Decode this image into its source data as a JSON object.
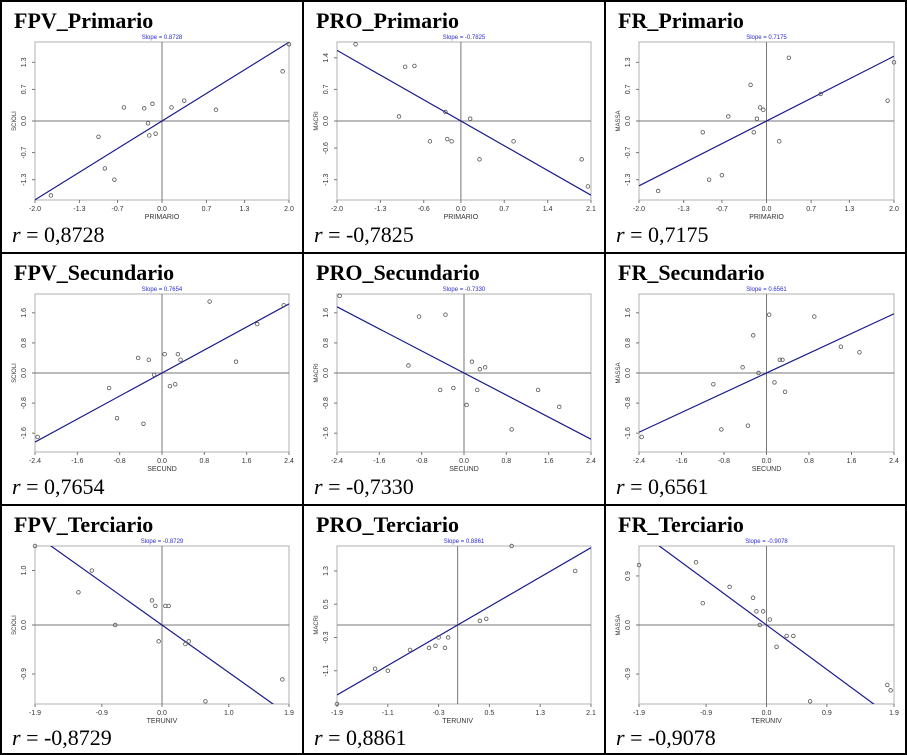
{
  "r_label": "r",
  "colors": {
    "line": "#1a1a8c",
    "point": "#555555",
    "axis": "#777777",
    "slope_text": "#2a2ad0",
    "frame": "#b0b0b0"
  },
  "chart_data": [
    {
      "type": "scatter",
      "title": "FPV_Primario",
      "slope_label": "Slope = 0.8728",
      "xlabel": "PRIMARIO",
      "ylabel": "SCIOLI",
      "xticks": [
        "-2.0",
        "-1.3",
        "-0.7",
        "0.0",
        "0.7",
        "1.3",
        "2.0"
      ],
      "xtick_values": [
        -2.0,
        -1.3,
        -0.7,
        0.0,
        0.7,
        1.3,
        2.0
      ],
      "yticks": [
        "1.3",
        "0.7",
        "0.0",
        "-0.7",
        "-1.3"
      ],
      "ytick_values": [
        1.3,
        0.7,
        0.0,
        -0.7,
        -1.3
      ],
      "xlim": [
        -2.0,
        2.0
      ],
      "ylim": [
        -1.75,
        1.75
      ],
      "slope": 0.8728,
      "r_value": "0,8728",
      "points": [
        [
          -1.75,
          -1.65
        ],
        [
          -1.0,
          -0.35
        ],
        [
          -0.9,
          -1.05
        ],
        [
          -0.75,
          -1.3
        ],
        [
          -0.6,
          0.3
        ],
        [
          -0.28,
          0.28
        ],
        [
          -0.22,
          -0.05
        ],
        [
          -0.2,
          -0.32
        ],
        [
          -0.15,
          0.38
        ],
        [
          -0.1,
          -0.28
        ],
        [
          0.15,
          0.3
        ],
        [
          0.35,
          0.45
        ],
        [
          0.85,
          0.25
        ],
        [
          1.9,
          1.1
        ],
        [
          2.0,
          1.7
        ]
      ]
    },
    {
      "type": "scatter",
      "title": "PRO_Primario",
      "slope_label": "Slope = -0.7825",
      "xlabel": "PRIMARIO",
      "ylabel": "MACRI",
      "xticks": [
        "-2.0",
        "-1.3",
        "-0.6",
        "0.0",
        "0.7",
        "1.4",
        "2.1"
      ],
      "xtick_values": [
        -2.0,
        -1.3,
        -0.6,
        0.0,
        0.7,
        1.4,
        2.1
      ],
      "yticks": [
        "1.4",
        "0.7",
        "0.0",
        "-0.6",
        "-1.3"
      ],
      "ytick_values": [
        1.4,
        0.7,
        0.0,
        -0.6,
        -1.3
      ],
      "xlim": [
        -2.0,
        2.1
      ],
      "ylim": [
        -1.75,
        1.75
      ],
      "slope": -0.7825,
      "r_value": "-0,7825",
      "points": [
        [
          -1.7,
          1.7
        ],
        [
          -1.0,
          0.1
        ],
        [
          -0.9,
          1.2
        ],
        [
          -0.75,
          1.22
        ],
        [
          -0.5,
          -0.45
        ],
        [
          -0.25,
          0.2
        ],
        [
          -0.22,
          -0.4
        ],
        [
          -0.15,
          -0.45
        ],
        [
          0.15,
          0.05
        ],
        [
          0.3,
          -0.85
        ],
        [
          0.85,
          -0.45
        ],
        [
          1.95,
          -0.85
        ],
        [
          2.05,
          -1.45
        ]
      ]
    },
    {
      "type": "scatter",
      "title": "FR_Primario",
      "slope_label": "Slope = 0.7175",
      "xlabel": "PRIMARIO",
      "ylabel": "MASSA",
      "xticks": [
        "-2.0",
        "-1.3",
        "-0.7",
        "0.0",
        "0.7",
        "1.3",
        "2.0"
      ],
      "xtick_values": [
        -2.0,
        -1.3,
        -0.7,
        0.0,
        0.7,
        1.3,
        2.0
      ],
      "yticks": [
        "1.3",
        "0.7",
        "0.0",
        "-0.7",
        "-1.3"
      ],
      "ytick_values": [
        1.3,
        0.7,
        0.0,
        -0.7,
        -1.3
      ],
      "xlim": [
        -2.0,
        2.0
      ],
      "ylim": [
        -1.75,
        1.75
      ],
      "slope": 0.7175,
      "r_value": "0,7175",
      "points": [
        [
          -1.7,
          -1.55
        ],
        [
          -1.0,
          -0.25
        ],
        [
          -0.9,
          -1.3
        ],
        [
          -0.7,
          -1.2
        ],
        [
          -0.6,
          0.1
        ],
        [
          -0.25,
          0.8
        ],
        [
          -0.2,
          -0.25
        ],
        [
          -0.15,
          0.05
        ],
        [
          -0.1,
          0.3
        ],
        [
          -0.05,
          0.25
        ],
        [
          0.2,
          -0.45
        ],
        [
          0.35,
          1.4
        ],
        [
          0.85,
          0.6
        ],
        [
          1.9,
          0.45
        ],
        [
          2.0,
          1.3
        ]
      ]
    },
    {
      "type": "scatter",
      "title": "FPV_Secundario",
      "slope_label": "Slope = 0.7654",
      "xlabel": "SECUND",
      "ylabel": "SCIOLI",
      "xticks": [
        "-2.4",
        "-1.6",
        "-0.8",
        "0.0",
        "0.8",
        "1.6",
        "2.4"
      ],
      "xtick_values": [
        -2.4,
        -1.6,
        -0.8,
        0.0,
        0.8,
        1.6,
        2.4
      ],
      "yticks": [
        "1.6",
        "0.8",
        "0.0",
        "-0.8",
        "-1.6"
      ],
      "ytick_values": [
        1.6,
        0.8,
        0.0,
        -0.8,
        -1.6
      ],
      "xlim": [
        -2.4,
        2.4
      ],
      "ylim": [
        -2.1,
        2.1
      ],
      "slope": 0.7654,
      "r_value": "0,7654",
      "points": [
        [
          -2.35,
          -1.7
        ],
        [
          -1.0,
          -0.4
        ],
        [
          -0.85,
          -1.2
        ],
        [
          -0.45,
          0.4
        ],
        [
          -0.35,
          -1.35
        ],
        [
          -0.25,
          0.35
        ],
        [
          -0.15,
          -0.05
        ],
        [
          0.05,
          0.5
        ],
        [
          0.15,
          -0.35
        ],
        [
          0.25,
          -0.3
        ],
        [
          0.3,
          0.5
        ],
        [
          0.35,
          0.35
        ],
        [
          0.9,
          1.9
        ],
        [
          1.4,
          0.3
        ],
        [
          1.8,
          1.3
        ],
        [
          2.3,
          1.8
        ]
      ]
    },
    {
      "type": "scatter",
      "title": "PRO_Secundario",
      "slope_label": "Slope = -0.7330",
      "xlabel": "SECUND",
      "ylabel": "MACRI",
      "xticks": [
        "-2.4",
        "-1.6",
        "-0.8",
        "0.0",
        "0.8",
        "1.6",
        "2.4"
      ],
      "xtick_values": [
        -2.4,
        -1.6,
        -0.8,
        0.0,
        0.8,
        1.6,
        2.4
      ],
      "yticks": [
        "1.6",
        "0.8",
        "0.0",
        "-0.8",
        "-1.6"
      ],
      "ytick_values": [
        1.6,
        0.8,
        0.0,
        -0.8,
        -1.6
      ],
      "xlim": [
        -2.4,
        2.4
      ],
      "ylim": [
        -2.1,
        2.1
      ],
      "slope": -0.733,
      "r_value": "-0,7330",
      "points": [
        [
          -2.35,
          2.05
        ],
        [
          -1.05,
          0.2
        ],
        [
          -0.85,
          1.5
        ],
        [
          -0.45,
          -0.45
        ],
        [
          -0.35,
          1.55
        ],
        [
          -0.2,
          -0.4
        ],
        [
          0.05,
          -0.85
        ],
        [
          0.15,
          0.3
        ],
        [
          0.25,
          -0.45
        ],
        [
          0.3,
          0.1
        ],
        [
          0.4,
          0.15
        ],
        [
          0.9,
          -1.5
        ],
        [
          1.4,
          -0.45
        ],
        [
          1.8,
          -0.9
        ]
      ]
    },
    {
      "type": "scatter",
      "title": "FR_Secundario",
      "slope_label": "Slope = 0.6561",
      "xlabel": "SECUND",
      "ylabel": "MASSA",
      "xticks": [
        "-2.4",
        "-1.6",
        "-0.8",
        "0.0",
        "0.8",
        "1.6",
        "2.4"
      ],
      "xtick_values": [
        -2.4,
        -1.6,
        -0.8,
        0.0,
        0.8,
        1.6,
        2.4
      ],
      "yticks": [
        "1.6",
        "0.8",
        "0.0",
        "-0.8",
        "-1.6"
      ],
      "ytick_values": [
        1.6,
        0.8,
        0.0,
        -0.8,
        -1.6
      ],
      "xlim": [
        -2.4,
        2.4
      ],
      "ylim": [
        -2.1,
        2.1
      ],
      "slope": 0.6561,
      "r_value": "0,6561",
      "points": [
        [
          -2.35,
          -1.7
        ],
        [
          -1.0,
          -0.3
        ],
        [
          -0.85,
          -1.5
        ],
        [
          -0.45,
          0.15
        ],
        [
          -0.35,
          -1.4
        ],
        [
          -0.25,
          1.0
        ],
        [
          -0.15,
          0.0
        ],
        [
          0.05,
          1.55
        ],
        [
          0.15,
          -0.25
        ],
        [
          0.25,
          0.35
        ],
        [
          0.3,
          0.35
        ],
        [
          0.35,
          -0.5
        ],
        [
          0.9,
          1.5
        ],
        [
          1.4,
          0.7
        ],
        [
          1.75,
          0.55
        ]
      ]
    },
    {
      "type": "scatter",
      "title": "FPV_Terciario",
      "slope_label": "Slope = -0.8729",
      "xlabel": "TERUNIV",
      "ylabel": "SCIOLI",
      "xticks": [
        "-1.9",
        "-0.9",
        "0.0",
        "1.0",
        "1.9"
      ],
      "xtick_values": [
        -1.9,
        -0.9,
        0.0,
        1.0,
        1.9
      ],
      "yticks": [
        "1.0",
        "0.0",
        "-0.9"
      ],
      "ytick_values": [
        1.0,
        0.0,
        -0.9
      ],
      "xlim": [
        -1.9,
        1.9
      ],
      "ylim": [
        -1.45,
        1.45
      ],
      "slope": -0.8729,
      "r_value": "-0,8729",
      "points": [
        [
          -1.9,
          1.45
        ],
        [
          -1.25,
          0.6
        ],
        [
          -1.05,
          1.0
        ],
        [
          -0.7,
          0.0
        ],
        [
          -0.15,
          0.45
        ],
        [
          -0.1,
          0.35
        ],
        [
          -0.05,
          -0.3
        ],
        [
          0.05,
          0.35
        ],
        [
          0.1,
          0.35
        ],
        [
          0.35,
          -0.35
        ],
        [
          0.4,
          -0.3
        ],
        [
          0.65,
          -1.4
        ],
        [
          1.8,
          -1.0
        ]
      ]
    },
    {
      "type": "scatter",
      "title": "PRO_Terciario",
      "slope_label": "Slope = 0.8861",
      "xlabel": "TERUNIV",
      "ylabel": "MACRI",
      "xticks": [
        "-1.9",
        "-1.1",
        "-0.3",
        "0.5",
        "1.3",
        "2.1"
      ],
      "xtick_values": [
        -1.9,
        -1.1,
        -0.3,
        0.5,
        1.3,
        2.1
      ],
      "yticks": [
        "1.3",
        "0.5",
        "-0.3",
        "-1.1"
      ],
      "ytick_values": [
        1.3,
        0.5,
        -0.3,
        -1.1
      ],
      "xlim": [
        -1.9,
        2.1
      ],
      "ylim": [
        -1.9,
        1.9
      ],
      "slope": 0.8861,
      "r_value": "0,8861",
      "points": [
        [
          -1.9,
          -1.9
        ],
        [
          -1.3,
          -1.05
        ],
        [
          -1.1,
          -1.1
        ],
        [
          -0.75,
          -0.6
        ],
        [
          -0.45,
          -0.55
        ],
        [
          -0.35,
          -0.5
        ],
        [
          -0.3,
          -0.3
        ],
        [
          -0.2,
          -0.55
        ],
        [
          -0.15,
          -0.3
        ],
        [
          0.35,
          0.1
        ],
        [
          0.45,
          0.15
        ],
        [
          0.85,
          1.9
        ],
        [
          1.85,
          1.3
        ]
      ]
    },
    {
      "type": "scatter",
      "title": "FR_Terciario",
      "slope_label": "Slope = -0.9078",
      "xlabel": "TERUNIV",
      "ylabel": "MASSA",
      "xticks": [
        "-1.9",
        "-0.9",
        "0.0",
        "0.9",
        "1.9"
      ],
      "xtick_values": [
        -1.9,
        -0.9,
        0.0,
        0.9,
        1.9
      ],
      "yticks": [
        "0.9",
        "0.0",
        "-0.9"
      ],
      "ytick_values": [
        0.9,
        0.0,
        -0.9
      ],
      "xlim": [
        -1.9,
        1.9
      ],
      "ylim": [
        -1.45,
        1.45
      ],
      "slope": -0.9078,
      "r_value": "-0,9078",
      "points": [
        [
          -1.9,
          1.1
        ],
        [
          -1.05,
          1.15
        ],
        [
          -0.95,
          0.4
        ],
        [
          -0.55,
          0.7
        ],
        [
          -0.2,
          0.5
        ],
        [
          -0.15,
          0.25
        ],
        [
          -0.1,
          0.0
        ],
        [
          -0.05,
          0.25
        ],
        [
          0.05,
          0.1
        ],
        [
          0.15,
          -0.4
        ],
        [
          0.3,
          -0.2
        ],
        [
          0.4,
          -0.2
        ],
        [
          0.65,
          -1.4
        ],
        [
          1.8,
          -1.1
        ],
        [
          1.85,
          -1.2
        ]
      ]
    }
  ]
}
